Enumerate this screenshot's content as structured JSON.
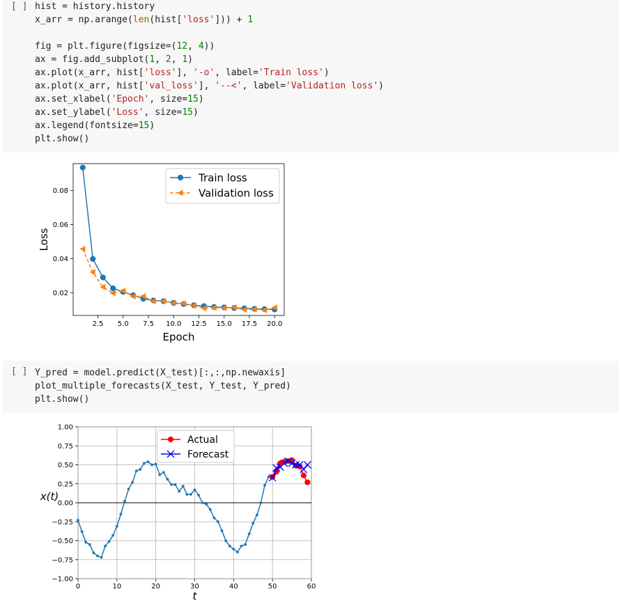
{
  "cells": [
    {
      "prompt": "[ ]",
      "lines": [
        [
          {
            "t": "hist = history.history",
            "c": "o"
          }
        ],
        [
          {
            "t": "x_arr = np.arange(",
            "c": "o"
          },
          {
            "t": "len",
            "c": "b"
          },
          {
            "t": "(hist[",
            "c": "o"
          },
          {
            "t": "'loss'",
            "c": "s"
          },
          {
            "t": "])) + ",
            "c": "o"
          },
          {
            "t": "1",
            "c": "n"
          }
        ],
        [
          {
            "t": "",
            "c": "o"
          }
        ],
        [
          {
            "t": "fig = plt.figure(figsize=(",
            "c": "o"
          },
          {
            "t": "12",
            "c": "n"
          },
          {
            "t": ", ",
            "c": "o"
          },
          {
            "t": "4",
            "c": "n"
          },
          {
            "t": "))",
            "c": "o"
          }
        ],
        [
          {
            "t": "ax = fig.add_subplot(",
            "c": "o"
          },
          {
            "t": "1",
            "c": "n"
          },
          {
            "t": ", ",
            "c": "o"
          },
          {
            "t": "2",
            "c": "n"
          },
          {
            "t": ", ",
            "c": "o"
          },
          {
            "t": "1",
            "c": "n"
          },
          {
            "t": ")",
            "c": "o"
          }
        ],
        [
          {
            "t": "ax.plot(x_arr, hist[",
            "c": "o"
          },
          {
            "t": "'loss'",
            "c": "s"
          },
          {
            "t": "], ",
            "c": "o"
          },
          {
            "t": "'-o'",
            "c": "s"
          },
          {
            "t": ", label=",
            "c": "o"
          },
          {
            "t": "'Train loss'",
            "c": "s"
          },
          {
            "t": ")",
            "c": "o"
          }
        ],
        [
          {
            "t": "ax.plot(x_arr, hist[",
            "c": "o"
          },
          {
            "t": "'val_loss'",
            "c": "s"
          },
          {
            "t": "], ",
            "c": "o"
          },
          {
            "t": "'--<'",
            "c": "s"
          },
          {
            "t": ", label=",
            "c": "o"
          },
          {
            "t": "'Validation loss'",
            "c": "s"
          },
          {
            "t": ")",
            "c": "o"
          }
        ],
        [
          {
            "t": "ax.set_xlabel(",
            "c": "o"
          },
          {
            "t": "'Epoch'",
            "c": "s"
          },
          {
            "t": ", size=",
            "c": "o"
          },
          {
            "t": "15",
            "c": "n"
          },
          {
            "t": ")",
            "c": "o"
          }
        ],
        [
          {
            "t": "ax.set_ylabel(",
            "c": "o"
          },
          {
            "t": "'Loss'",
            "c": "s"
          },
          {
            "t": ", size=",
            "c": "o"
          },
          {
            "t": "15",
            "c": "n"
          },
          {
            "t": ")",
            "c": "o"
          }
        ],
        [
          {
            "t": "ax.legend(fontsize=",
            "c": "o"
          },
          {
            "t": "15",
            "c": "n"
          },
          {
            "t": ")",
            "c": "o"
          }
        ],
        [
          {
            "t": "plt.show()",
            "c": "o"
          }
        ]
      ]
    },
    {
      "prompt": "[ ]",
      "lines": [
        [
          {
            "t": "Y_pred = model.predict(X_test)[:,:,np.newaxis]",
            "c": "o"
          }
        ],
        [
          {
            "t": "plot_multiple_forecasts(X_test, Y_test, Y_pred)",
            "c": "o"
          }
        ],
        [
          {
            "t": "plt.show()",
            "c": "o"
          }
        ]
      ]
    }
  ],
  "chart_data": [
    {
      "type": "line",
      "xlabel": "Epoch",
      "ylabel": "Loss",
      "xticks": [
        "2.5",
        "5.0",
        "7.5",
        "10.0",
        "12.5",
        "15.0",
        "17.5",
        "20.0"
      ],
      "yticks": [
        "0.02",
        "0.04",
        "0.06",
        "0.08"
      ],
      "xlim": [
        0.05,
        20.95
      ],
      "ylim": [
        0.0066,
        0.0958
      ],
      "grid": false,
      "legend_position": "top-right",
      "x": [
        1,
        2,
        3,
        4,
        5,
        6,
        7,
        8,
        9,
        10,
        11,
        12,
        13,
        14,
        15,
        16,
        17,
        18,
        19,
        20
      ],
      "series": [
        {
          "name": "Train loss",
          "marker": "o",
          "linestyle": "solid",
          "color": "#1f77b4",
          "values": [
            0.0935,
            0.0398,
            0.0289,
            0.0225,
            0.0204,
            0.0185,
            0.0164,
            0.0154,
            0.015,
            0.014,
            0.0133,
            0.0126,
            0.0121,
            0.0116,
            0.0113,
            0.011,
            0.0108,
            0.0105,
            0.0103,
            0.0101
          ]
        },
        {
          "name": "Validation loss",
          "marker": "<",
          "linestyle": "dashed",
          "color": "#ff7f0e",
          "values": [
            0.0457,
            0.032,
            0.0233,
            0.0197,
            0.021,
            0.0178,
            0.0179,
            0.015,
            0.015,
            0.0139,
            0.0136,
            0.0124,
            0.0108,
            0.0112,
            0.011,
            0.0113,
            0.01,
            0.0103,
            0.0097,
            0.0112
          ]
        }
      ]
    },
    {
      "type": "line",
      "xlabel": "t",
      "ylabel": "x(t)",
      "xticks": [
        "0",
        "10",
        "20",
        "30",
        "40",
        "50",
        "60"
      ],
      "yticks": [
        "1.00",
        "0.75",
        "0.50",
        "0.25",
        "0.00",
        "−0.25",
        "−0.50",
        "−0.75",
        "−1.00"
      ],
      "xlim": [
        0,
        60
      ],
      "ylim": [
        -1,
        1
      ],
      "grid": true,
      "legend_position": "top-center",
      "series": [
        {
          "name": "",
          "color": "#1f77b4",
          "marker": ".",
          "linestyle": "solid",
          "x": [
            0,
            1,
            2,
            3,
            4,
            5,
            6,
            7,
            8,
            9,
            10,
            11,
            12,
            13,
            14,
            15,
            16,
            17,
            18,
            19,
            20,
            21,
            22,
            23,
            24,
            25,
            26,
            27,
            28,
            29,
            30,
            31,
            32,
            33,
            34,
            35,
            36,
            37,
            38,
            39,
            40,
            41,
            42,
            43,
            44,
            45,
            46,
            47,
            48,
            49
          ],
          "values": [
            -0.23,
            -0.38,
            -0.52,
            -0.55,
            -0.66,
            -0.7,
            -0.72,
            -0.57,
            -0.51,
            -0.43,
            -0.31,
            -0.15,
            0.02,
            0.18,
            0.27,
            0.42,
            0.44,
            0.52,
            0.54,
            0.5,
            0.51,
            0.37,
            0.4,
            0.31,
            0.24,
            0.24,
            0.15,
            0.22,
            0.11,
            0.11,
            0.17,
            0.1,
            0.0,
            -0.02,
            -0.09,
            -0.2,
            -0.25,
            -0.37,
            -0.5,
            -0.57,
            -0.61,
            -0.65,
            -0.57,
            -0.55,
            -0.41,
            -0.27,
            -0.16,
            0.0,
            0.23,
            0.34
          ]
        },
        {
          "name": "Actual",
          "color": "#ff0000",
          "marker": "o",
          "linestyle": "solid",
          "x": [
            50,
            51,
            52,
            53,
            54,
            55,
            56,
            57,
            58,
            59
          ],
          "values": [
            0.34,
            0.41,
            0.52,
            0.54,
            0.55,
            0.56,
            0.49,
            0.48,
            0.36,
            0.27
          ]
        },
        {
          "name": "Forecast",
          "color": "#0000ff",
          "marker": "x",
          "linestyle": "solid",
          "x": [
            50,
            51,
            52,
            53,
            54,
            55,
            56,
            57,
            58,
            59
          ],
          "values": [
            0.33,
            0.46,
            0.47,
            0.52,
            0.55,
            0.52,
            0.5,
            0.5,
            0.44,
            0.5
          ]
        }
      ]
    }
  ]
}
